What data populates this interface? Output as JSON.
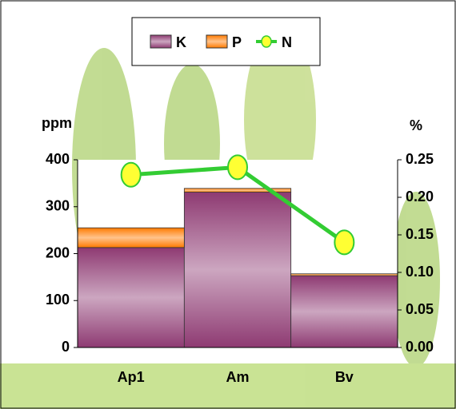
{
  "chart_data": {
    "type": "stacked-bar-line",
    "categories": [
      "Ap1",
      "Am",
      "Bv"
    ],
    "series": [
      {
        "name": "K",
        "color": "#8e3a72",
        "values": [
          213,
          331,
          153
        ]
      },
      {
        "name": "P",
        "color": "#ff7a00",
        "values": [
          42,
          8,
          4
        ]
      },
      {
        "name": "N",
        "color": "#33cc33",
        "values": [
          0.23,
          0.24,
          0.14
        ],
        "axis": "y2"
      }
    ],
    "y_label": "ppm",
    "y2_label": "%",
    "ylim": [
      0,
      400
    ],
    "yticks": [
      0,
      100,
      200,
      300,
      400
    ],
    "y2lim": [
      0,
      0.25
    ],
    "y2ticks": [
      {
        "value": 0,
        "label": "0.00"
      },
      0.05,
      {
        "value": 0.1,
        "label": "0.10"
      },
      0.15,
      {
        "value": 0.2,
        "label": "0.20"
      },
      0.25
    ],
    "grid": false,
    "legend": "top"
  }
}
